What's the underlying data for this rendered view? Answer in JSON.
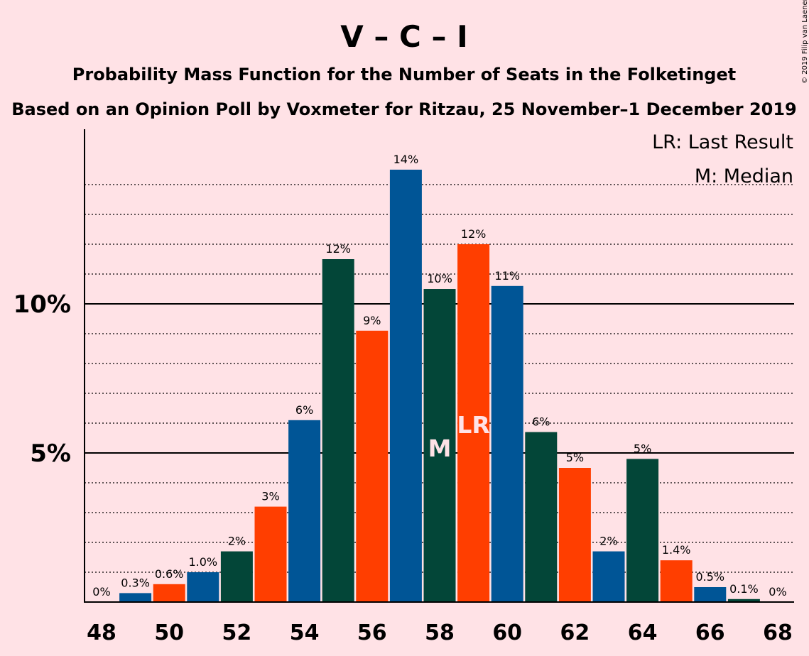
{
  "header": {
    "title": "V – C – I",
    "subtitle1": "Probability Mass Function for the Number of Seats in the Folketinget",
    "subtitle2": "Based on an Opinion Poll by Voxmeter for Ritzau, 25 November–1 December 2019"
  },
  "legend": {
    "lr": "LR: Last Result",
    "median": "M: Median"
  },
  "copyright": "© 2019 Filip van Laenen",
  "colors": {
    "background": "#FFE2E6",
    "blue": "#005596",
    "green": "#034638",
    "orange": "#FF3E00",
    "marker_text": "#FFE2E6"
  },
  "chart_data": {
    "type": "bar",
    "x": [
      48,
      49,
      50,
      51,
      52,
      53,
      54,
      55,
      56,
      57,
      58,
      59,
      60,
      61,
      62,
      63,
      64,
      65,
      66,
      67,
      68
    ],
    "values": [
      0,
      0.3,
      0.6,
      1.0,
      1.7,
      3.2,
      6.1,
      11.5,
      9.1,
      14.5,
      10.5,
      12.0,
      10.6,
      5.7,
      4.5,
      1.7,
      4.8,
      1.4,
      0.5,
      0.1,
      0
    ],
    "labels": [
      "0%",
      "0.3%",
      "0.6%",
      "1.0%",
      "2%",
      "3%",
      "6%",
      "12%",
      "9%",
      "14%",
      "10%",
      "12%",
      "11%",
      "6%",
      "5%",
      "2%",
      "5%",
      "1.4%",
      "0.5%",
      "0.1%",
      "0%"
    ],
    "color_keys": [
      "blue",
      "blue",
      "orange",
      "blue",
      "green",
      "orange",
      "blue",
      "green",
      "orange",
      "blue",
      "green",
      "orange",
      "blue",
      "green",
      "orange",
      "blue",
      "green",
      "orange",
      "blue",
      "green",
      "orange"
    ],
    "xticks": [
      48,
      50,
      52,
      54,
      56,
      58,
      60,
      62,
      64,
      66,
      68
    ],
    "ytick_labels": [
      {
        "value": 5,
        "label": "5%"
      },
      {
        "value": 10,
        "label": "10%"
      }
    ],
    "ylim": [
      0,
      15.8
    ],
    "grid": "dotted every 1%, solid at 5% and 10%",
    "markers": [
      {
        "seat": 58,
        "text": "M"
      },
      {
        "seat": 59,
        "text": "LR"
      }
    ],
    "legend_position": "top-right"
  }
}
